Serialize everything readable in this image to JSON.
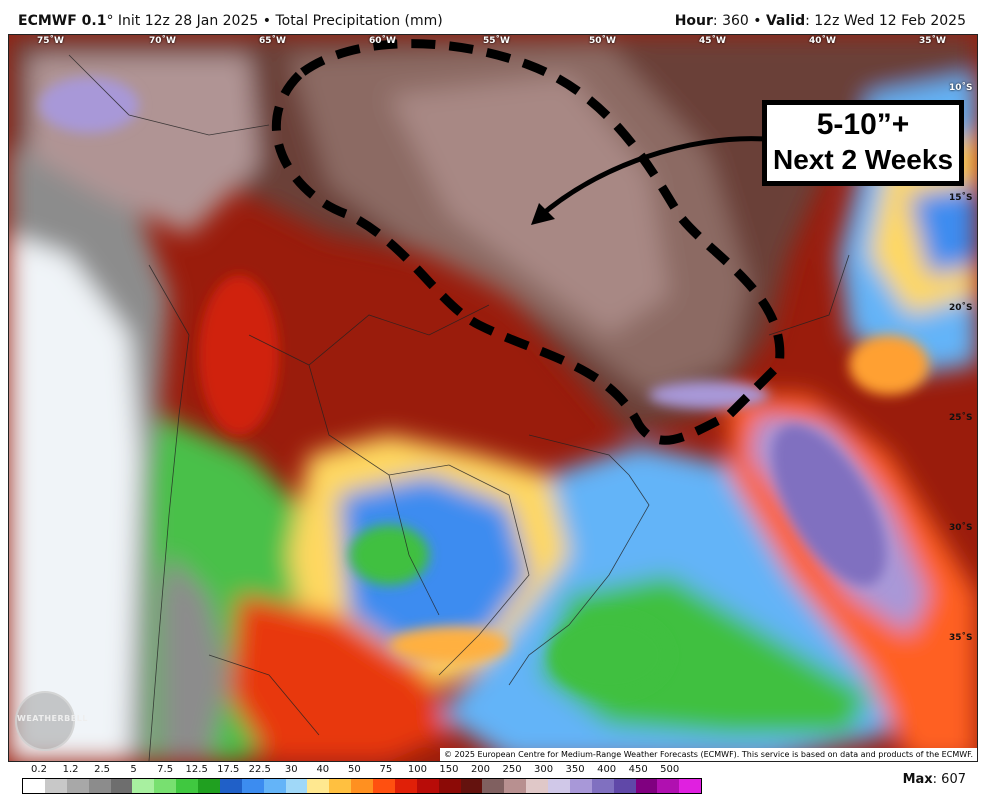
{
  "header": {
    "model": "ECMWF 0.1",
    "init": "° Init 12z 28 Jan 2025",
    "sep": " • ",
    "field": "Total Precipitation (mm)",
    "hour_label": "Hour",
    "hour_value": ": 360 • ",
    "valid_label": "Valid",
    "valid_value": ": 12z Wed 12 Feb 2025"
  },
  "map": {
    "longitude_labels": [
      "75˚W",
      "70˚W",
      "65˚W",
      "60˚W",
      "55˚W",
      "50˚W",
      "45˚W",
      "40˚W",
      "35˚W"
    ],
    "latitude_labels": [
      "10˚S",
      "15˚S",
      "20˚S",
      "25˚S",
      "30˚S",
      "35˚S"
    ],
    "annotation": {
      "line1": "5-10”+",
      "line2": "Next 2 Weeks"
    },
    "logo_text": "WEATHERBELL",
    "copyright": "© 2025 European Centre for Medium-Range Weather Forecasts (ECMWF). This service is based on data and products of the ECMWF."
  },
  "legend": {
    "ticks": [
      "0.2",
      "1.2",
      "2.5",
      "5",
      "7.5",
      "12.5",
      "17.5",
      "22.5",
      "30",
      "40",
      "50",
      "75",
      "100",
      "150",
      "200",
      "250",
      "300",
      "350",
      "400",
      "450",
      "500"
    ],
    "colors": [
      "#ffffff",
      "#c8c8c8",
      "#a8a8a8",
      "#8c8c8c",
      "#6e6e6e",
      "#a8f0a0",
      "#78e070",
      "#40c840",
      "#20a020",
      "#2060c8",
      "#3c8cf0",
      "#64b4f8",
      "#a0d8f8",
      "#ffe890",
      "#ffc040",
      "#ff9020",
      "#ff5010",
      "#e02008",
      "#b80c08",
      "#8c0a06",
      "#64120e",
      "#806060",
      "#b89090",
      "#e0c8c8",
      "#d0c8e8",
      "#a898d8",
      "#8070c0",
      "#6048a8",
      "#800080",
      "#b010b0",
      "#e020e0"
    ],
    "max_label": "Max",
    "max_value": ": 607"
  }
}
